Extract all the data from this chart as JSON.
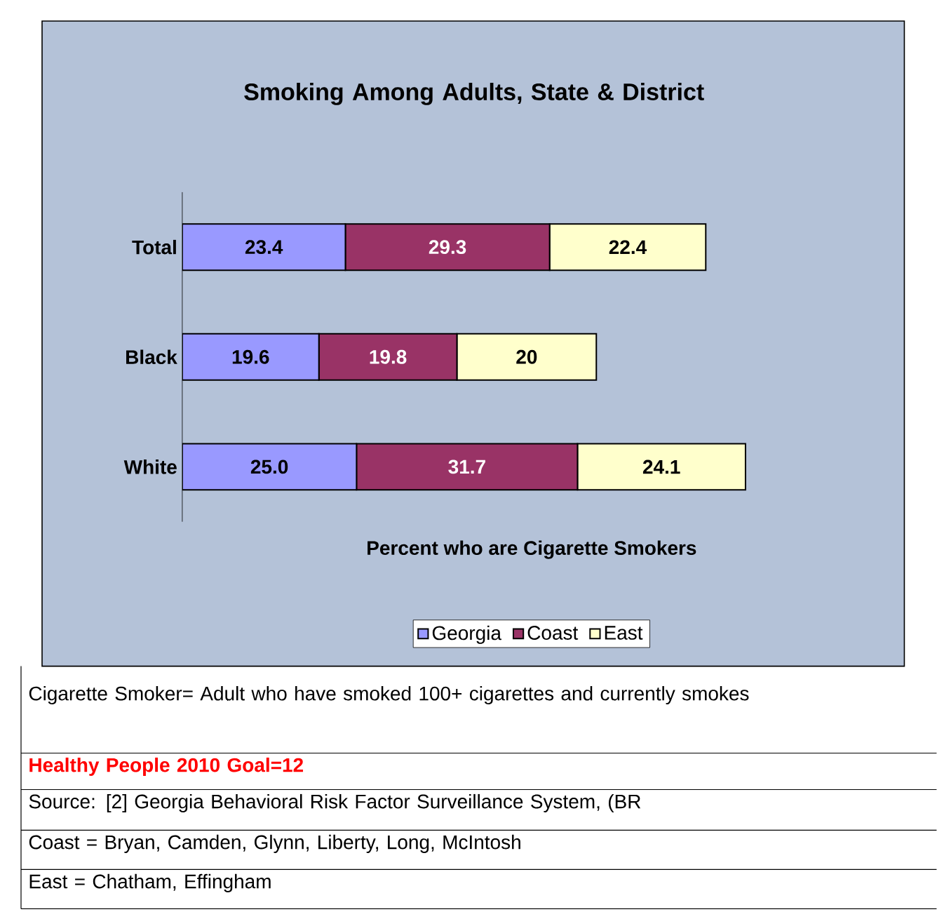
{
  "chart_data": {
    "type": "bar",
    "orientation": "horizontal",
    "stacked": true,
    "title": "Smoking Among Adults, State & District",
    "xlabel": "Percent who are Cigarette Smokers",
    "categories": [
      "Total",
      "Black",
      "White"
    ],
    "series": [
      {
        "name": "Georgia",
        "color": "#9999ff",
        "values": [
          23.4,
          19.6,
          25.0
        ],
        "value_labels": [
          "23.4",
          "19.6",
          "25.0"
        ]
      },
      {
        "name": "Coast",
        "color": "#993366",
        "values": [
          29.3,
          19.8,
          31.7
        ],
        "value_labels": [
          "29.3",
          "19.8",
          "31.7"
        ]
      },
      {
        "name": "East",
        "color": "#ffffcc",
        "values": [
          22.4,
          20,
          24.1
        ],
        "value_labels": [
          "22.4",
          "20",
          "24.1"
        ]
      }
    ],
    "legend": "bottom",
    "annotations": [
      "Cigarette Smoker= Adult who have smoked 100+ cigarettes and currently smokes",
      "Healthy People 2010 Goal=12",
      "Source: [2] Georgia Behavioral Risk Factor Surveillance System, (BR",
      "Coast = Bryan, Camden, Glynn, Liberty, Long, McIntosh",
      "East =  Chatham, Effingham"
    ]
  }
}
